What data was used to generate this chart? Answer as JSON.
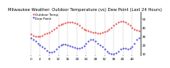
{
  "title": "Milwaukee Weather: Outdoor Temperature (vs) Dew Point (Last 24 Hours)",
  "background_color": "#ffffff",
  "plot_bg": "#ffffff",
  "grid_color": "#999999",
  "ylim": [
    8,
    58
  ],
  "yticks": [
    10,
    20,
    30,
    40,
    50
  ],
  "ytick_labels": [
    "10",
    "20",
    "30",
    "40",
    "50"
  ],
  "n_points": 48,
  "temp_color": "#dd0000",
  "dew_color": "#0000cc",
  "temp_values": [
    32,
    31,
    30,
    30,
    30,
    31,
    32,
    33,
    34,
    36,
    38,
    40,
    42,
    43,
    44,
    45,
    46,
    46,
    46,
    45,
    44,
    42,
    40,
    38,
    37,
    36,
    35,
    34,
    34,
    33,
    33,
    34,
    35,
    36,
    38,
    40,
    42,
    44,
    46,
    47,
    47,
    46,
    44,
    42,
    40,
    38,
    37,
    36
  ],
  "dew_values": [
    28,
    26,
    24,
    22,
    20,
    18,
    16,
    14,
    12,
    12,
    13,
    15,
    18,
    20,
    21,
    21,
    20,
    19,
    18,
    17,
    16,
    16,
    17,
    19,
    22,
    24,
    26,
    26,
    24,
    22,
    20,
    18,
    15,
    13,
    11,
    10,
    10,
    11,
    13,
    15,
    16,
    16,
    15,
    16,
    18,
    22,
    26,
    28
  ],
  "title_fontsize": 3.8,
  "tick_fontsize": 3.0,
  "legend_fontsize": 3.0,
  "line_width": 0.6,
  "marker_size": 0.8,
  "temp_label": "Outdoor Temp",
  "dew_label": "Dew Point",
  "grid_linewidth": 0.25,
  "grid_linestyle": "--"
}
